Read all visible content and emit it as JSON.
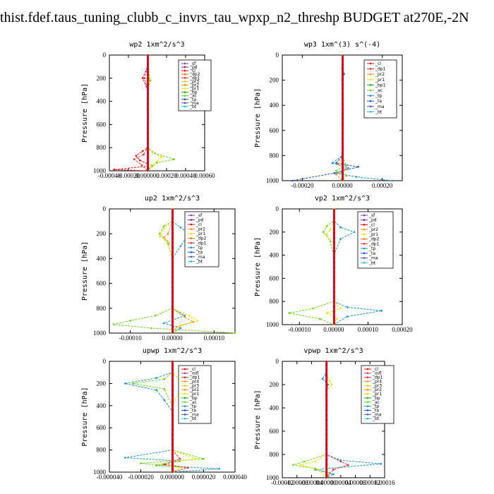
{
  "page_title": "thist.fdef.taus_tuning_clubb_c_invrs_tau_wpxp_n2_threshp  BUDGET at270E,-2N",
  "colors": {
    "sf": "#7a3fa0",
    "pd": "#8b1a8b",
    "cl": "#e01010",
    "dp2": "#e8701a",
    "dp1": "#d83030",
    "pr3": "#f0c020",
    "pr2": "#f09020",
    "pr1": "#f0e000",
    "bp": "#20a020",
    "bp1": "#20a020",
    "ac": "#70d020",
    "tp": "#2090c0",
    "ta": "#2050c0",
    "ma": "#5050a0",
    "bt": "#20c0c0",
    "mfl": "#c04080",
    "pr4": "#e0a030"
  },
  "chart_data": [
    {
      "type": "line",
      "title": "wp2   1xm^2/s^3",
      "ylabel": "Pressure [hPa]",
      "xlim": [
        -0.0004,
        0.0006
      ],
      "ylim": [
        1000,
        0
      ],
      "xticks": [
        "-0.00040",
        "-0.00020",
        "0.000000",
        "0.00020",
        "0.00040",
        "0.00060"
      ],
      "yticks": [
        "0",
        "200",
        "400",
        "600",
        "800",
        "1000"
      ],
      "legend": [
        "_sf",
        "_pd",
        "_cl",
        "_dp2",
        "_dp1",
        "_pr3",
        "_pr2",
        "_pr1",
        "_bp",
        "_ac",
        "_ta",
        "_ma",
        "_bt"
      ],
      "series": [
        {
          "name": "_cl",
          "color_key": "cl",
          "x": [
            0,
            0,
            -5e-05,
            0,
            0,
            -5e-05,
            -0.00012,
            -8e-05,
            0,
            0.0,
            -0.00035,
            0
          ],
          "y": [
            0,
            100,
            200,
            300,
            800,
            830,
            870,
            910,
            940,
            960,
            990,
            1000
          ]
        },
        {
          "name": "_pr1",
          "color_key": "pr1",
          "x": [
            0,
            0,
            2e-05,
            0,
            0,
            5e-05,
            0.00015,
            0.0001,
            4e-05,
            2e-05,
            0
          ],
          "y": [
            0,
            100,
            210,
            300,
            800,
            840,
            880,
            920,
            950,
            980,
            1000
          ]
        },
        {
          "name": "_ac",
          "color_key": "ac",
          "x": [
            0,
            0,
            3e-05,
            0,
            0,
            8e-05,
            0.00028,
            0.0001,
            5e-05,
            2e-05,
            0
          ],
          "y": [
            0,
            100,
            220,
            300,
            800,
            850,
            900,
            930,
            960,
            980,
            1000
          ]
        },
        {
          "name": "_dp1",
          "color_key": "dp1",
          "x": [
            0,
            0,
            -3e-05,
            0,
            0,
            -4e-05,
            -0.00014,
            -6e-05,
            0
          ],
          "y": [
            0,
            100,
            200,
            300,
            800,
            860,
            900,
            950,
            1000
          ]
        }
      ]
    },
    {
      "type": "line",
      "title": "wp3   1xm^(3) s^(-4)",
      "ylabel": "Pressure [hPa]",
      "xlim": [
        -0.0003,
        0.0003
      ],
      "ylim": [
        1000,
        0
      ],
      "xticks": [
        "-0.00020",
        "0.00000",
        "0.00020"
      ],
      "yticks": [
        "0",
        "200",
        "400",
        "600",
        "800",
        "1000"
      ],
      "legend": [
        "_cl",
        "_dp1",
        "_pr2",
        "_pr1",
        "_bp1",
        "_ac",
        "_tp",
        "_ta",
        "_ma",
        "_bt"
      ],
      "series": [
        {
          "name": "_tp",
          "color_key": "tp",
          "x": [
            0,
            0,
            1e-05,
            0,
            0,
            -5e-05,
            3e-05,
            -3e-05,
            7e-05,
            0.00025
          ],
          "y": [
            0,
            100,
            150,
            200,
            800,
            860,
            900,
            940,
            970,
            1000
          ]
        },
        {
          "name": "_ta",
          "color_key": "ta",
          "x": [
            0,
            0,
            0,
            0,
            -3e-05,
            8e-05,
            -4e-05,
            -0.00025
          ],
          "y": [
            0,
            100,
            200,
            800,
            860,
            890,
            940,
            1000
          ]
        },
        {
          "name": "_pr2",
          "color_key": "pr2",
          "x": [
            0,
            0,
            0,
            -2e-05,
            2e-05,
            -3e-05,
            0
          ],
          "y": [
            0,
            100,
            800,
            870,
            910,
            950,
            1000
          ]
        },
        {
          "name": "_ac",
          "color_key": "ac",
          "x": [
            0,
            0,
            0,
            2e-05,
            -3e-05,
            2e-05,
            0
          ],
          "y": [
            0,
            100,
            800,
            880,
            920,
            960,
            1000
          ]
        }
      ]
    },
    {
      "type": "line",
      "title": "up2   1xm^2/s^3",
      "ylabel": "Pressure [hPa]",
      "xlim": [
        -0.00015,
        0.00015
      ],
      "ylim": [
        1000,
        0
      ],
      "xticks": [
        "-0.00010",
        "0.00000",
        "0.00010"
      ],
      "yticks": [
        "0",
        "200",
        "400",
        "600",
        "800",
        "1000"
      ],
      "legend": [
        "_sf",
        "_pd",
        "_cl",
        "_pr2",
        "_pr1",
        "_dp2",
        "_dp1",
        "_tp",
        "_ta",
        "_ma",
        "_bt"
      ],
      "series": [
        {
          "name": "_ac",
          "color_key": "ac",
          "x": [
            0,
            0,
            -2e-05,
            -3e-05,
            -1e-05,
            0,
            0,
            -4e-05,
            -0.0001,
            -0.00014,
            -5e-05,
            0.00015
          ],
          "y": [
            0,
            100,
            140,
            200,
            280,
            400,
            800,
            860,
            900,
            930,
            960,
            1000
          ]
        },
        {
          "name": "_tp",
          "color_key": "tp",
          "x": [
            0,
            0,
            2e-05,
            4e-05,
            2e-05,
            0,
            0,
            3e-05,
            -2e-05,
            2e-05,
            0
          ],
          "y": [
            0,
            100,
            150,
            200,
            300,
            400,
            800,
            860,
            920,
            960,
            1000
          ]
        },
        {
          "name": "_pr1",
          "color_key": "pr1",
          "x": [
            0,
            0,
            -2e-05,
            -3e-05,
            -1e-05,
            0,
            0,
            4e-05,
            6e-05,
            2e-05,
            0
          ],
          "y": [
            0,
            100,
            160,
            220,
            260,
            400,
            800,
            860,
            900,
            940,
            1000
          ]
        },
        {
          "name": "_pr2",
          "color_key": "pr2",
          "x": [
            0,
            0,
            -1e-05,
            -2e-05,
            0,
            0,
            3e-05,
            5e-05,
            1e-05,
            0
          ],
          "y": [
            0,
            100,
            200,
            230,
            300,
            800,
            870,
            910,
            950,
            1000
          ]
        }
      ]
    },
    {
      "type": "line",
      "title": "vp2   1xm^2/s^3",
      "ylabel": "Pressure [hPa]",
      "xlim": [
        -0.00015,
        0.0002
      ],
      "ylim": [
        1000,
        0
      ],
      "xticks": [
        "-0.00010",
        "0.00000",
        "0.00010",
        "0.00020"
      ],
      "yticks": [
        "0",
        "200",
        "400",
        "600",
        "800",
        "1000"
      ],
      "legend": [
        "_sf",
        "_pd",
        "_cl",
        "_pr2",
        "_pr1",
        "_dp2",
        "_dp1",
        "_tp",
        "_ta",
        "_ma",
        "_bt"
      ],
      "series": [
        {
          "name": "_tp",
          "color_key": "tp",
          "x": [
            0,
            0,
            2e-05,
            6e-05,
            2e-05,
            0,
            0,
            4e-05,
            0.00014,
            4e-05,
            0
          ],
          "y": [
            0,
            100,
            160,
            200,
            260,
            400,
            800,
            850,
            880,
            930,
            1000
          ]
        },
        {
          "name": "_ac",
          "color_key": "ac",
          "x": [
            0,
            0,
            -2e-05,
            -3e-05,
            -1e-05,
            0,
            0,
            -6e-05,
            -0.00013,
            -4e-05,
            0
          ],
          "y": [
            0,
            100,
            150,
            200,
            280,
            400,
            800,
            860,
            900,
            950,
            1000
          ]
        },
        {
          "name": "_pr1",
          "color_key": "pr1",
          "x": [
            0,
            0,
            -1e-05,
            -2e-05,
            0,
            0,
            2e-05,
            -2e-05,
            1e-05,
            0
          ],
          "y": [
            0,
            100,
            180,
            220,
            300,
            800,
            860,
            900,
            950,
            1000
          ]
        }
      ]
    },
    {
      "type": "line",
      "title": "upwp   1xm^2/s^3",
      "ylabel": "Pressure [hPa]",
      "xlim": [
        -4e-05,
        4e-05
      ],
      "ylim": [
        1000,
        0
      ],
      "xticks": [
        "-0.000040",
        "-0.000020",
        "0.000000",
        "0.000020",
        "0.000040"
      ],
      "yticks": [
        "0",
        "200",
        "400",
        "600",
        "800",
        "1000"
      ],
      "legend": [
        "_cl",
        "_mfl",
        "_dp1",
        "_pr4",
        "_pr3",
        "_pr2",
        "_pr1",
        "_bp",
        "_ac",
        "_tp",
        "_ta",
        "_ma",
        "_bt"
      ],
      "series": [
        {
          "name": "_tp",
          "color_key": "tp",
          "x": [
            0,
            0,
            -1e-05,
            -3e-05,
            -1e-05,
            -5e-06,
            0,
            0,
            -3e-05,
            5e-06,
            -1e-05,
            3e-05,
            0
          ],
          "y": [
            0,
            100,
            150,
            200,
            260,
            350,
            450,
            800,
            870,
            900,
            940,
            970,
            1000
          ]
        },
        {
          "name": "_ac",
          "color_key": "ac",
          "x": [
            0,
            0,
            -5e-06,
            -2.5e-05,
            -5e-06,
            0,
            0,
            2e-05,
            -2e-05,
            1e-05,
            0
          ],
          "y": [
            0,
            100,
            160,
            200,
            250,
            400,
            800,
            880,
            920,
            960,
            1000
          ]
        },
        {
          "name": "_pr1",
          "color_key": "pr1",
          "x": [
            0,
            0,
            5e-06,
            2e-05,
            5e-06,
            0,
            0,
            1.5e-05,
            -1e-05,
            5e-06,
            0
          ],
          "y": [
            0,
            100,
            170,
            210,
            260,
            400,
            800,
            880,
            930,
            960,
            1000
          ]
        },
        {
          "name": "_dp1",
          "color_key": "dp1",
          "x": [
            0,
            0,
            0,
            5e-06,
            -5e-06,
            1e-05,
            0
          ],
          "y": [
            0,
            100,
            800,
            880,
            930,
            960,
            1000
          ]
        }
      ]
    },
    {
      "type": "line",
      "title": "vpwp   1xm^2/s^3",
      "ylabel": "Pressure [hPa]",
      "xlim": [
        -0.00012,
        0.00016
      ],
      "ylim": [
        1000,
        0
      ],
      "xticks": [
        "-0.00012",
        "-0.00008",
        "-0.00004",
        "0.00000",
        "0.00004",
        "0.00008",
        "0.00012",
        "0.00016"
      ],
      "yticks": [
        "0",
        "200",
        "400",
        "600",
        "800",
        "1000"
      ],
      "legend": [
        "_cl",
        "_mfl",
        "_dp1",
        "_pr4",
        "_pr3",
        "_pr2",
        "_pr1",
        "_bp",
        "_ac",
        "_tp",
        "_ta",
        "_ma",
        "_bt"
      ],
      "series": [
        {
          "name": "_tp",
          "color_key": "tp",
          "x": [
            0,
            0,
            -1e-05,
            5e-06,
            0,
            0,
            4e-05,
            0.00015,
            -3e-05,
            2e-05,
            0
          ],
          "y": [
            0,
            100,
            150,
            200,
            300,
            800,
            850,
            880,
            930,
            970,
            1000
          ]
        },
        {
          "name": "_ac",
          "color_key": "ac",
          "x": [
            0,
            0,
            0,
            0,
            -6e-05,
            -9e-05,
            -3e-05,
            1e-05,
            0
          ],
          "y": [
            0,
            100,
            300,
            800,
            860,
            890,
            920,
            960,
            1000
          ]
        },
        {
          "name": "_pr1",
          "color_key": "pr1",
          "x": [
            0,
            0,
            1e-05,
            1.5e-05,
            0,
            0,
            -3e-05,
            -7e-05,
            -2e-05,
            0
          ],
          "y": [
            0,
            100,
            170,
            200,
            260,
            800,
            860,
            890,
            930,
            1000
          ]
        },
        {
          "name": "_dp1",
          "color_key": "dp1",
          "x": [
            0,
            0,
            0,
            4e-05,
            6e-05,
            2e-05,
            0
          ],
          "y": [
            0,
            100,
            800,
            860,
            890,
            930,
            1000
          ]
        }
      ]
    }
  ]
}
